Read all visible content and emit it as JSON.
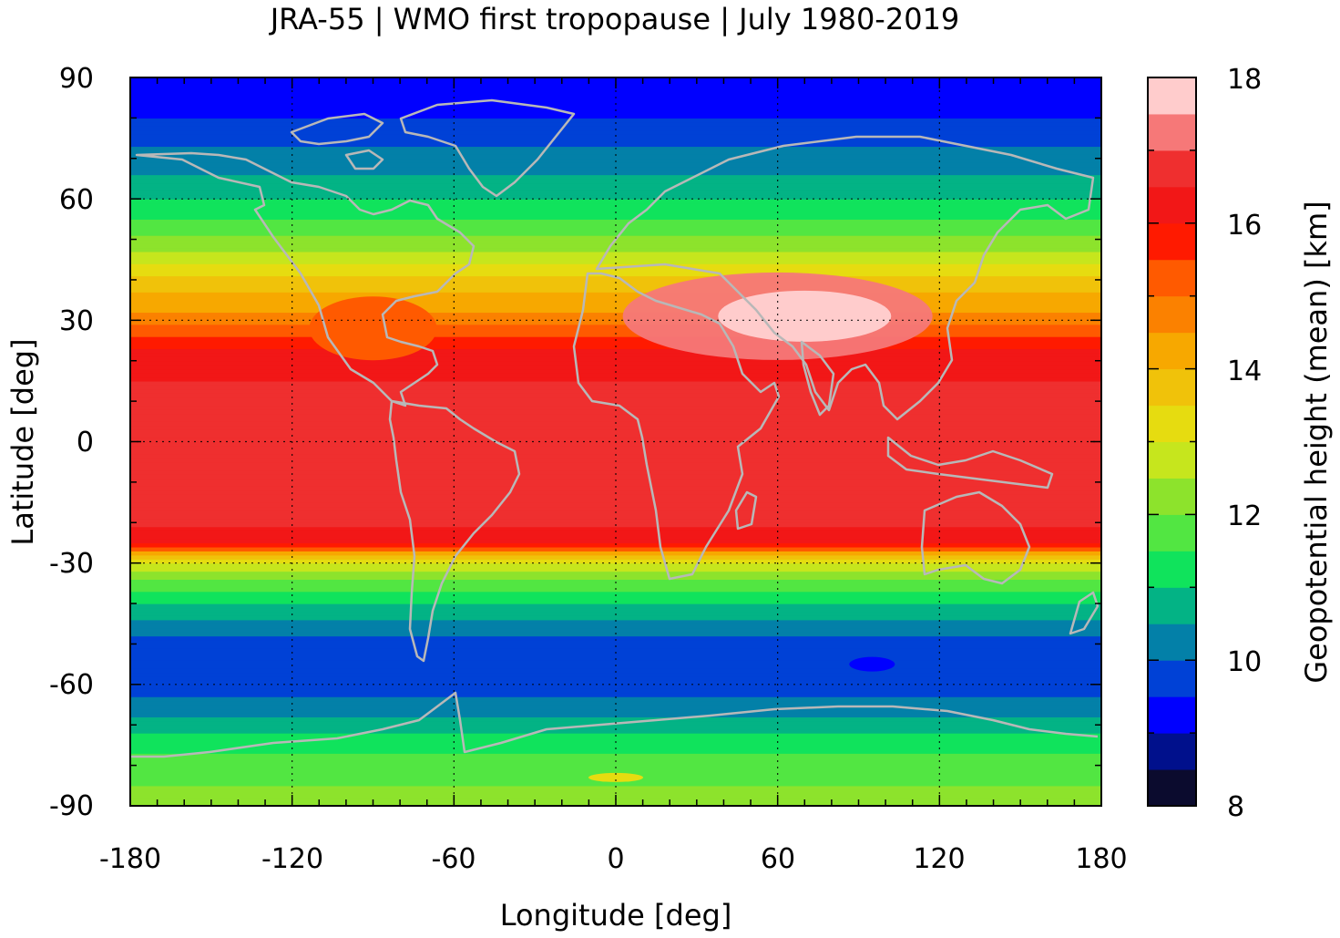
{
  "chart_data": {
    "type": "heatmap",
    "title": "JRA-55 | WMO first tropopause | July 1980-2019",
    "xlabel": "Longitude [deg]",
    "ylabel": "Latitude [deg]",
    "xlim": [
      -180,
      180
    ],
    "ylim": [
      -90,
      90
    ],
    "xticks": [
      "-180",
      "-120",
      "-60",
      "0",
      "60",
      "120",
      "180"
    ],
    "yticks": [
      "90",
      "60",
      "30",
      "0",
      "-30",
      "-60",
      "-90"
    ],
    "grid": true,
    "colorbar": {
      "label": "Geopotential height (mean) [km]",
      "range": [
        8,
        18
      ],
      "ticks": [
        "18",
        "16",
        "14",
        "12",
        "10",
        "8"
      ],
      "levels": [
        8,
        8.5,
        9,
        9.5,
        10,
        10.5,
        11,
        11.5,
        12,
        12.5,
        13,
        13.5,
        14,
        14.5,
        15,
        15.5,
        16,
        16.5,
        17,
        17.5,
        18
      ],
      "colors": [
        "#0b0b2e",
        "#00108c",
        "#0000ff",
        "#0041d6",
        "#0380a8",
        "#03b385",
        "#10e35c",
        "#52e642",
        "#8de32c",
        "#c6e61d",
        "#e6dc10",
        "#f0c20a",
        "#f7a800",
        "#fb8100",
        "#ff5a00",
        "#ff1a00",
        "#f21717",
        "#ef2f2f",
        "#f67878",
        "#ffcccc"
      ]
    },
    "zonal_profile": {
      "description_lat": [
        -90,
        -85,
        -80,
        -75,
        -70,
        -65,
        -60,
        -55,
        -50,
        -45,
        -40,
        -35,
        -30,
        -27,
        -25,
        -20,
        -10,
        0,
        10,
        20,
        25,
        30,
        35,
        40,
        45,
        50,
        55,
        60,
        65,
        70,
        75,
        80,
        85,
        90
      ],
      "height_km": [
        12.1,
        12.0,
        11.7,
        11.3,
        10.7,
        10.1,
        9.8,
        9.7,
        9.8,
        10.3,
        11.0,
        11.8,
        13.0,
        14.6,
        16.2,
        16.6,
        16.7,
        16.7,
        16.6,
        16.4,
        15.8,
        14.7,
        14.2,
        13.6,
        12.8,
        12.1,
        11.5,
        11.0,
        10.6,
        10.2,
        9.9,
        9.5,
        9.2,
        9.0
      ]
    },
    "regional_anomalies": [
      {
        "lon": 70,
        "lat": 31,
        "height_km": 17.6
      },
      {
        "lon": 60,
        "lat": 28,
        "height_km": 17.0
      },
      {
        "lon": -90,
        "lat": 28,
        "height_km": 15.0
      },
      {
        "lon": 95,
        "lat": -55,
        "height_km": 9.0
      },
      {
        "lon": 0,
        "lat": -83,
        "height_km": 13.0
      }
    ]
  }
}
